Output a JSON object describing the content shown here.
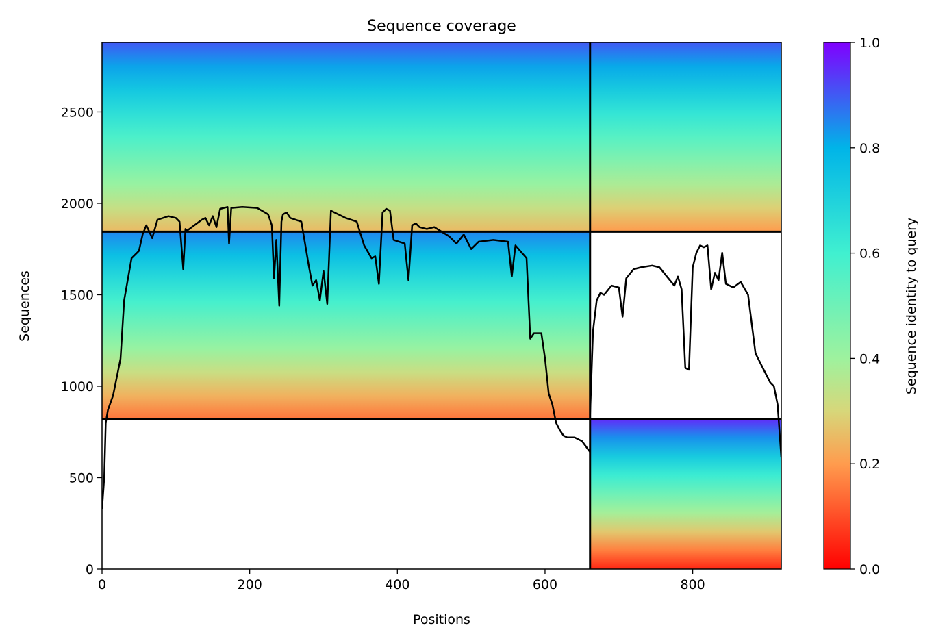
{
  "chart_data": {
    "type": "heatmap",
    "title": "Sequence coverage",
    "xlabel": "Positions",
    "ylabel": "Sequences",
    "colorbar_label": "Sequence identity to query",
    "xlim": [
      0,
      920
    ],
    "ylim": [
      0,
      2880
    ],
    "x_ticks": [
      0,
      200,
      400,
      600,
      800
    ],
    "y_ticks": [
      0,
      500,
      1000,
      1500,
      2000,
      2500
    ],
    "colorbar_ticks": [
      "0.0",
      "0.2",
      "0.4",
      "0.6",
      "0.8",
      "1.0"
    ],
    "colormap": "rainbow_r",
    "segment_boundaries_x": [
      661
    ],
    "segment_boundaries_y": [
      820,
      1845
    ],
    "blocks": [
      {
        "name": "block-chain1-pair",
        "x": [
          0,
          661
        ],
        "y": [
          1845,
          2880
        ],
        "identity_top": 0.9,
        "identity_bottom": 0.25
      },
      {
        "name": "block-chain2-pair",
        "x": [
          661,
          920
        ],
        "y": [
          1845,
          2880
        ],
        "identity_top": 0.9,
        "identity_bottom": 0.2
      },
      {
        "name": "block-chain1-single",
        "x": [
          0,
          661
        ],
        "y": [
          820,
          1845
        ],
        "identity_top": 0.85,
        "identity_bottom": 0.15
      },
      {
        "name": "block-chain2-single",
        "x": [
          661,
          920
        ],
        "y": [
          0,
          820
        ],
        "identity_top": 0.95,
        "identity_bottom": 0.05
      }
    ],
    "coverage_line": {
      "color": "#000000",
      "x": [
        0,
        3,
        5,
        8,
        15,
        25,
        30,
        40,
        50,
        55,
        60,
        68,
        75,
        90,
        100,
        105,
        110,
        113,
        115,
        125,
        135,
        140,
        145,
        150,
        155,
        160,
        170,
        172,
        175,
        190,
        210,
        225,
        230,
        233,
        236,
        240,
        243,
        245,
        250,
        255,
        270,
        280,
        285,
        290,
        295,
        300,
        305,
        310,
        330,
        345,
        355,
        365,
        370,
        375,
        380,
        385,
        390,
        395,
        410,
        415,
        420,
        425,
        430,
        440,
        450,
        470,
        480,
        490,
        500,
        510,
        530,
        550,
        555,
        560,
        575,
        580,
        585,
        590,
        595,
        600,
        605,
        610,
        615,
        620,
        625,
        630,
        640,
        650,
        661
      ],
      "y": [
        330,
        500,
        800,
        870,
        950,
        1150,
        1470,
        1700,
        1740,
        1830,
        1880,
        1810,
        1910,
        1930,
        1920,
        1900,
        1640,
        1860,
        1850,
        1880,
        1910,
        1920,
        1880,
        1930,
        1870,
        1970,
        1980,
        1780,
        1975,
        1980,
        1975,
        1940,
        1880,
        1590,
        1800,
        1440,
        1900,
        1940,
        1950,
        1920,
        1900,
        1660,
        1550,
        1580,
        1470,
        1630,
        1450,
        1960,
        1920,
        1900,
        1770,
        1700,
        1710,
        1560,
        1950,
        1970,
        1960,
        1800,
        1780,
        1580,
        1880,
        1890,
        1870,
        1860,
        1870,
        1820,
        1780,
        1830,
        1750,
        1790,
        1800,
        1790,
        1600,
        1770,
        1700,
        1260,
        1290,
        1290,
        1290,
        1150,
        960,
        900,
        800,
        760,
        730,
        720,
        720,
        700,
        640
      ]
    },
    "coverage_line_2": {
      "color": "#000000",
      "x": [
        661,
        665,
        670,
        675,
        680,
        690,
        700,
        705,
        710,
        720,
        730,
        745,
        755,
        765,
        775,
        780,
        785,
        790,
        795,
        800,
        805,
        810,
        815,
        820,
        825,
        830,
        835,
        840,
        845,
        855,
        865,
        875,
        885,
        895,
        905,
        910,
        915,
        920
      ],
      "y": [
        840,
        1300,
        1470,
        1510,
        1500,
        1550,
        1540,
        1380,
        1590,
        1640,
        1650,
        1660,
        1650,
        1600,
        1550,
        1600,
        1530,
        1100,
        1090,
        1650,
        1730,
        1770,
        1760,
        1770,
        1530,
        1620,
        1580,
        1730,
        1560,
        1540,
        1570,
        1500,
        1180,
        1100,
        1020,
        1000,
        900,
        610
      ]
    }
  }
}
